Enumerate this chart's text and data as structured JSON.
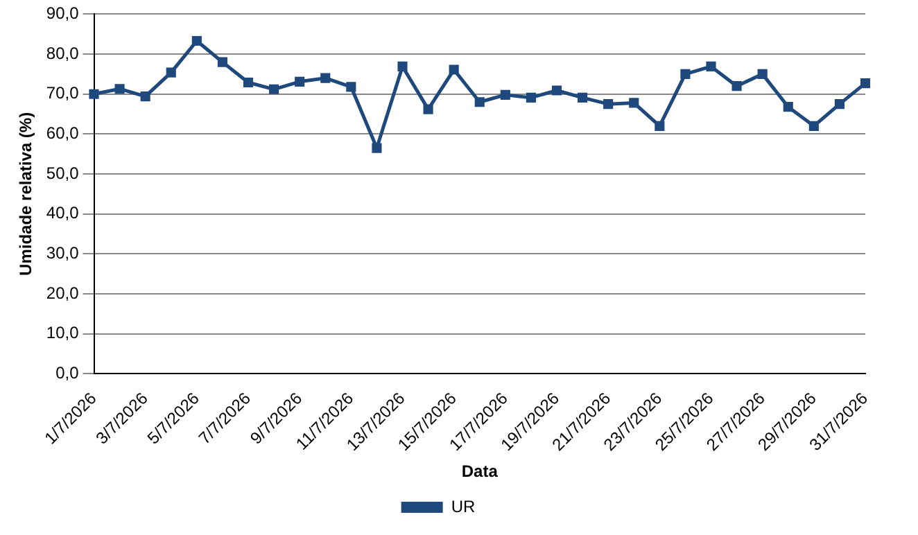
{
  "chart_data": {
    "type": "line",
    "xlabel": "Data",
    "ylabel": "Umidade relativa (%)",
    "categories": [
      "1/7/2026",
      null,
      "3/7/2026",
      null,
      "5/7/2026",
      null,
      "7/7/2026",
      null,
      "9/7/2026",
      null,
      "11/7/2026",
      null,
      "13/7/2026",
      null,
      "15/7/2026",
      null,
      "17/7/2026",
      null,
      "19/7/2026",
      null,
      "21/7/2026",
      null,
      "23/7/2026",
      null,
      "25/7/2026",
      null,
      "27/7/2026",
      null,
      "29/7/2026",
      null,
      "31/7/2026"
    ],
    "series": [
      {
        "name": "UR",
        "color": "#1f497d",
        "values": [
          70.0,
          71.3,
          69.4,
          75.4,
          83.3,
          78.0,
          72.9,
          71.2,
          73.1,
          74.0,
          71.8,
          56.5,
          76.9,
          66.2,
          76.1,
          68.0,
          69.8,
          69.1,
          70.9,
          69.1,
          67.5,
          67.8,
          62.0,
          75.0,
          76.9,
          72.0,
          75.0,
          66.8,
          62.0,
          67.5,
          72.7
        ]
      }
    ],
    "ylim": [
      0,
      90
    ],
    "yticks": [
      {
        "value": 0,
        "label": "0,0"
      },
      {
        "value": 10,
        "label": "10,0"
      },
      {
        "value": 20,
        "label": "20,0"
      },
      {
        "value": 30,
        "label": "30,0"
      },
      {
        "value": 40,
        "label": "40,0"
      },
      {
        "value": 50,
        "label": "50,0"
      },
      {
        "value": 60,
        "label": "60,0"
      },
      {
        "value": 70,
        "label": "70,0"
      },
      {
        "value": 80,
        "label": "80,0"
      },
      {
        "value": 90,
        "label": "90,0"
      }
    ],
    "grid": "y",
    "legend": "bottom",
    "marker": "square",
    "line_style": "solid"
  }
}
